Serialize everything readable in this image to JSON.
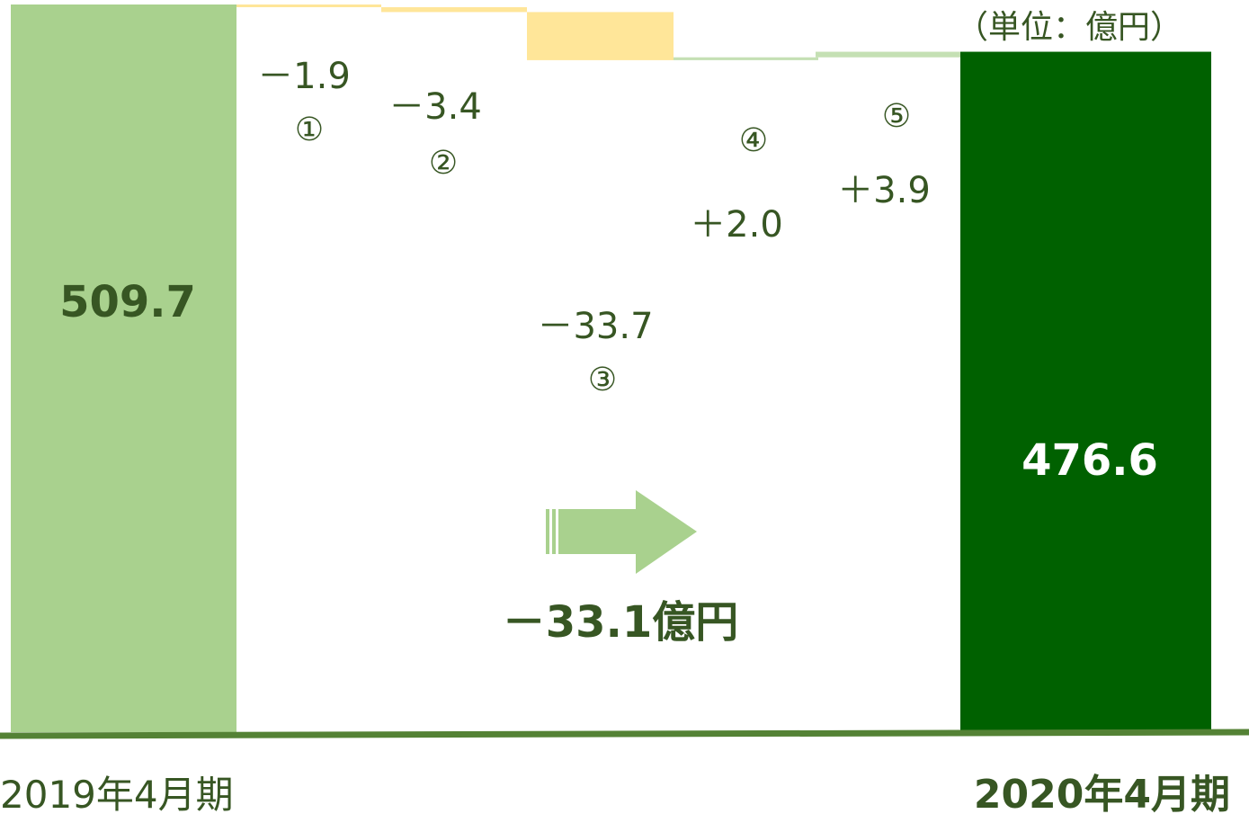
{
  "chart_data": {
    "type": "bar",
    "subtype": "waterfall",
    "unit_label": "（単位：億円）",
    "categories": [
      "2019年4月期",
      "①",
      "②",
      "③",
      "④",
      "⑤",
      "2020年4月期"
    ],
    "start": {
      "label": "2019年4月期",
      "value": 509.7,
      "value_label": "509.7"
    },
    "steps": [
      {
        "marker": "①",
        "value": -1.9,
        "value_label": "－1.9"
      },
      {
        "marker": "②",
        "value": -3.4,
        "value_label": "－3.4"
      },
      {
        "marker": "③",
        "value": -33.7,
        "value_label": "－33.7"
      },
      {
        "marker": "④",
        "value": 2.0,
        "value_label": "＋2.0"
      },
      {
        "marker": "⑤",
        "value": 3.9,
        "value_label": "＋3.9"
      }
    ],
    "end": {
      "label": "2020年4月期",
      "value": 476.6,
      "value_label": "476.6"
    },
    "total_change_label": "－33.1億円",
    "colors": {
      "start_bar": "#a9d18e",
      "end_bar": "#006100",
      "decrease": "#ffe699",
      "increase": "#c5e0b4",
      "baseline": "#548235",
      "text": "#375623",
      "arrow": "#a9d18e"
    }
  }
}
